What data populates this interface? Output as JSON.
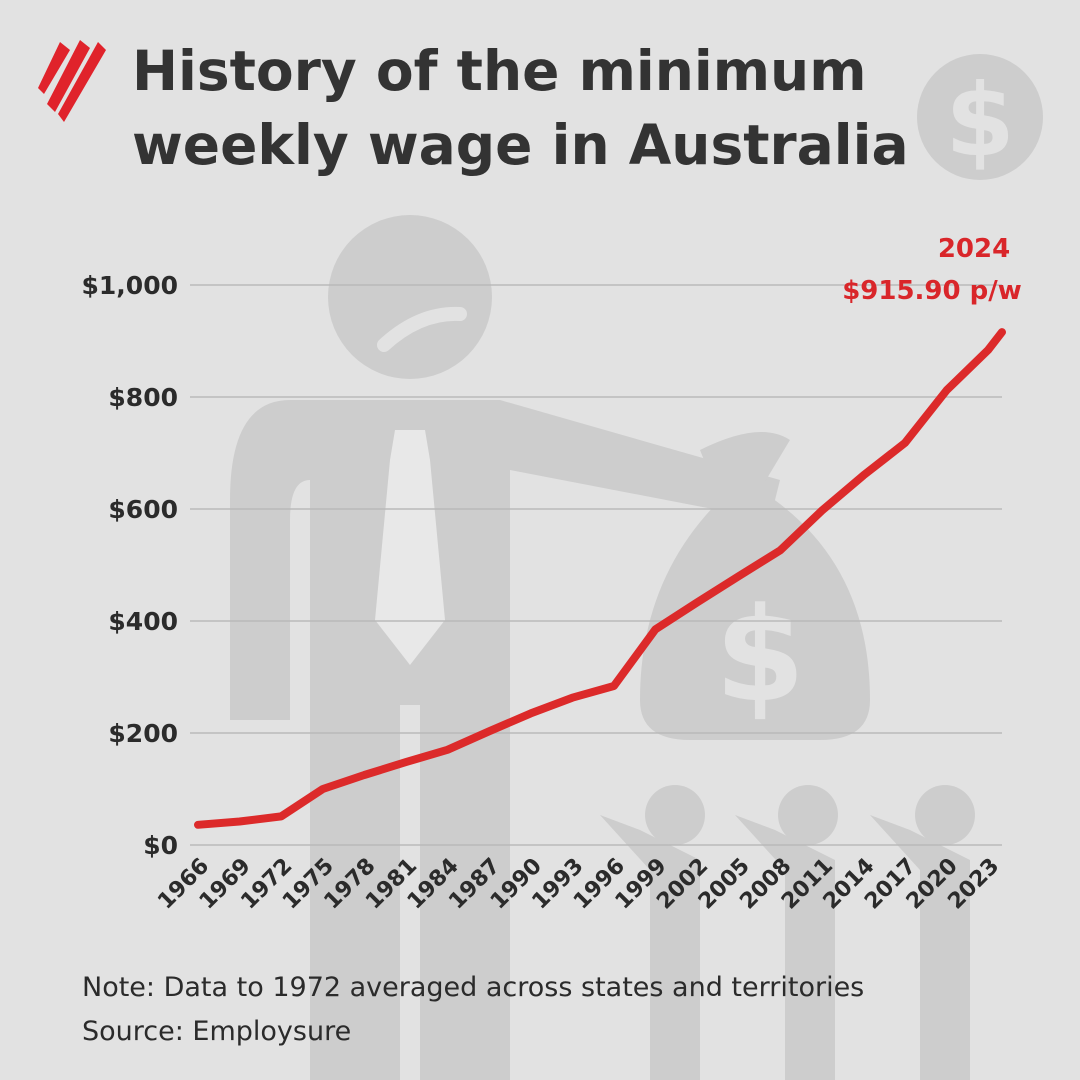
{
  "title": {
    "line1": "History of the minimum",
    "line2": "weekly wage in Australia"
  },
  "notes": {
    "note": "Note: Data to 1972 averaged across states and territories",
    "source": "Source: Employsure"
  },
  "logo": {
    "icon": "sbs-logo-icon",
    "color": "#e0232b"
  },
  "colors": {
    "line": "#dc2a2a",
    "annotation": "#d9262a",
    "text": "#2b2b2b",
    "grid": "#b9b9b9",
    "background": "#e2e2e2",
    "watermark": "#cdcdcd"
  },
  "chart_data": {
    "type": "line",
    "title": "History of the minimum weekly wage in Australia",
    "xlabel": "",
    "ylabel": "",
    "x": [
      1966,
      1969,
      1972,
      1975,
      1978,
      1981,
      1984,
      1987,
      1990,
      1993,
      1996,
      1999,
      2002,
      2005,
      2008,
      2011,
      2014,
      2017,
      2020,
      2023,
      2024
    ],
    "series": [
      {
        "name": "",
        "values": [
          36,
          42,
          51,
          100,
          125,
          148,
          170,
          203,
          235,
          263,
          284,
          385,
          433,
          480,
          526,
          597,
          660,
          718,
          812,
          884,
          915.9
        ]
      }
    ],
    "xticks": [
      "1966",
      "1969",
      "1972",
      "1975",
      "1978",
      "1981",
      "1984",
      "1987",
      "1990",
      "1993",
      "1996",
      "1999",
      "2002",
      "2005",
      "2008",
      "2011",
      "2014",
      "2017",
      "2020",
      "2023"
    ],
    "yticks": [
      0,
      200,
      400,
      600,
      800,
      1000
    ],
    "ytick_labels": [
      "$0",
      "$200",
      "$400",
      "$600",
      "$800",
      "$1,000"
    ],
    "ylim": [
      0,
      1000
    ],
    "grid": true,
    "legend": "none",
    "annotation": {
      "x": 2024,
      "year_label": "2024",
      "value_label": "$915.90 p/w"
    }
  }
}
